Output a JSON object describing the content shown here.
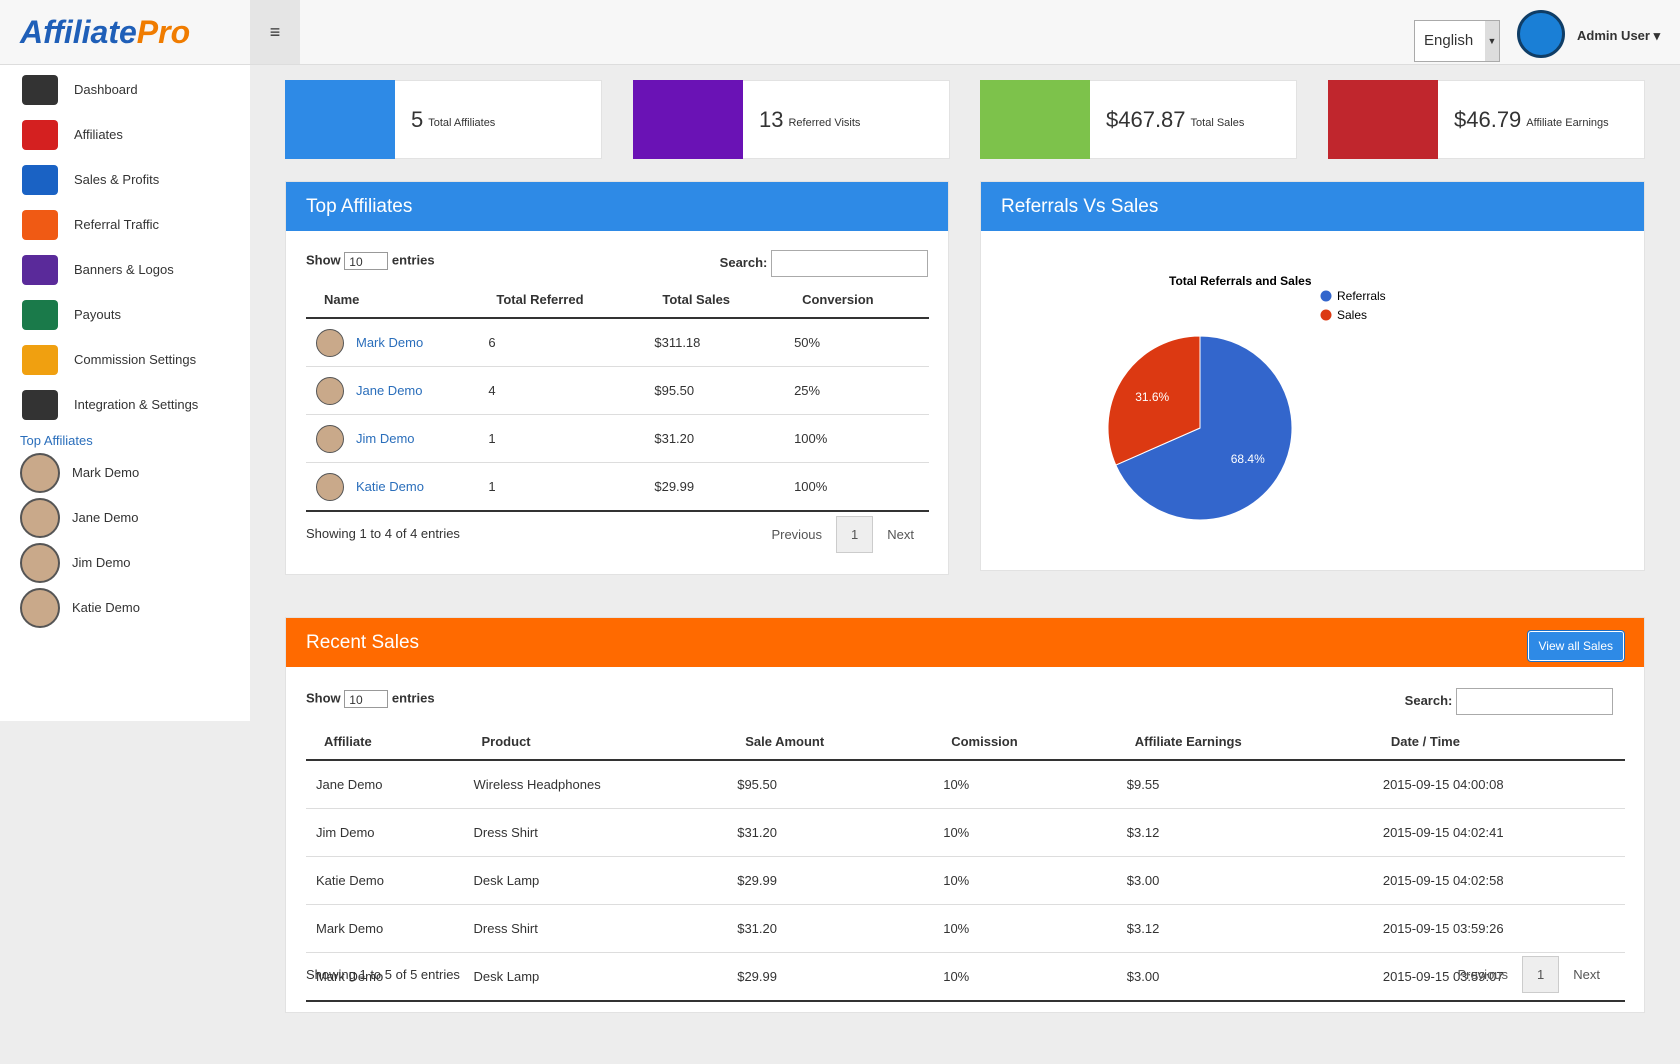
{
  "header": {
    "logo_main": "Affiliate",
    "logo_accent": "Pro",
    "language": "English",
    "user": "Admin User"
  },
  "sidebar": {
    "menu": [
      "Dashboard",
      "Affiliates",
      "Sales & Profits",
      "Referral Traffic",
      "Banners & Logos",
      "Payouts",
      "Commission Settings",
      "Integration & Settings"
    ],
    "top_affiliates_title": "Top Affiliates",
    "top_affiliates": [
      "Mark Demo",
      "Jane Demo",
      "Jim Demo",
      "Katie Demo"
    ]
  },
  "stats": [
    {
      "value": "5",
      "label": "Total Affiliates"
    },
    {
      "value": "13",
      "label": "Referred Visits"
    },
    {
      "value": "$467.87",
      "label": "Total Sales"
    },
    {
      "value": "$46.79",
      "label": "Affiliate Earnings"
    }
  ],
  "top_affiliates": {
    "title": "Top Affiliates",
    "show": "Show",
    "page_size": "10",
    "entries": "entries",
    "search": "Search:",
    "columns": [
      "Name",
      "Total Referred",
      "Total Sales",
      "Conversion"
    ],
    "rows": [
      [
        "Mark Demo",
        "6",
        "$311.18",
        "50%"
      ],
      [
        "Jane Demo",
        "4",
        "$95.50",
        "25%"
      ],
      [
        "Jim Demo",
        "1",
        "$31.20",
        "100%"
      ],
      [
        "Katie Demo",
        "1",
        "$29.99",
        "100%"
      ]
    ],
    "info": "Showing 1 to 4 of 4 entries",
    "previous": "Previous",
    "page": "1",
    "next": "Next"
  },
  "chart_data": {
    "type": "pie",
    "panel_title": "Referrals Vs Sales",
    "title": "Total Referrals and Sales",
    "categories": [
      "Referrals",
      "Sales"
    ],
    "values": [
      68.4,
      31.6
    ],
    "value_labels": [
      "68.4%",
      "31.6%"
    ],
    "colors": [
      "#3366cc",
      "#dc3912"
    ]
  },
  "recent_sales": {
    "title": "Recent Sales",
    "button": "View all Sales",
    "show": "Show",
    "page_size": "10",
    "entries": "entries",
    "search": "Search:",
    "columns": [
      "Affiliate",
      "Product",
      "Sale Amount",
      "Comission",
      "Affiliate Earnings",
      "Date / Time"
    ],
    "rows": [
      [
        "Jane Demo",
        "Wireless Headphones",
        "$95.50",
        "10%",
        "$9.55",
        "2015-09-15 04:00:08"
      ],
      [
        "Jim Demo",
        "Dress Shirt",
        "$31.20",
        "10%",
        "$3.12",
        "2015-09-15 04:02:41"
      ],
      [
        "Katie Demo",
        "Desk Lamp",
        "$29.99",
        "10%",
        "$3.00",
        "2015-09-15 04:02:58"
      ],
      [
        "Mark Demo",
        "Dress Shirt",
        "$31.20",
        "10%",
        "$3.12",
        "2015-09-15 03:59:26"
      ],
      [
        "Mark Demo",
        "Desk Lamp",
        "$29.99",
        "10%",
        "$3.00",
        "2015-09-15 03:59:07"
      ]
    ],
    "info": "Showing 1 to 5 of 5 entries",
    "previous": "Previous",
    "page": "1",
    "next": "Next"
  }
}
